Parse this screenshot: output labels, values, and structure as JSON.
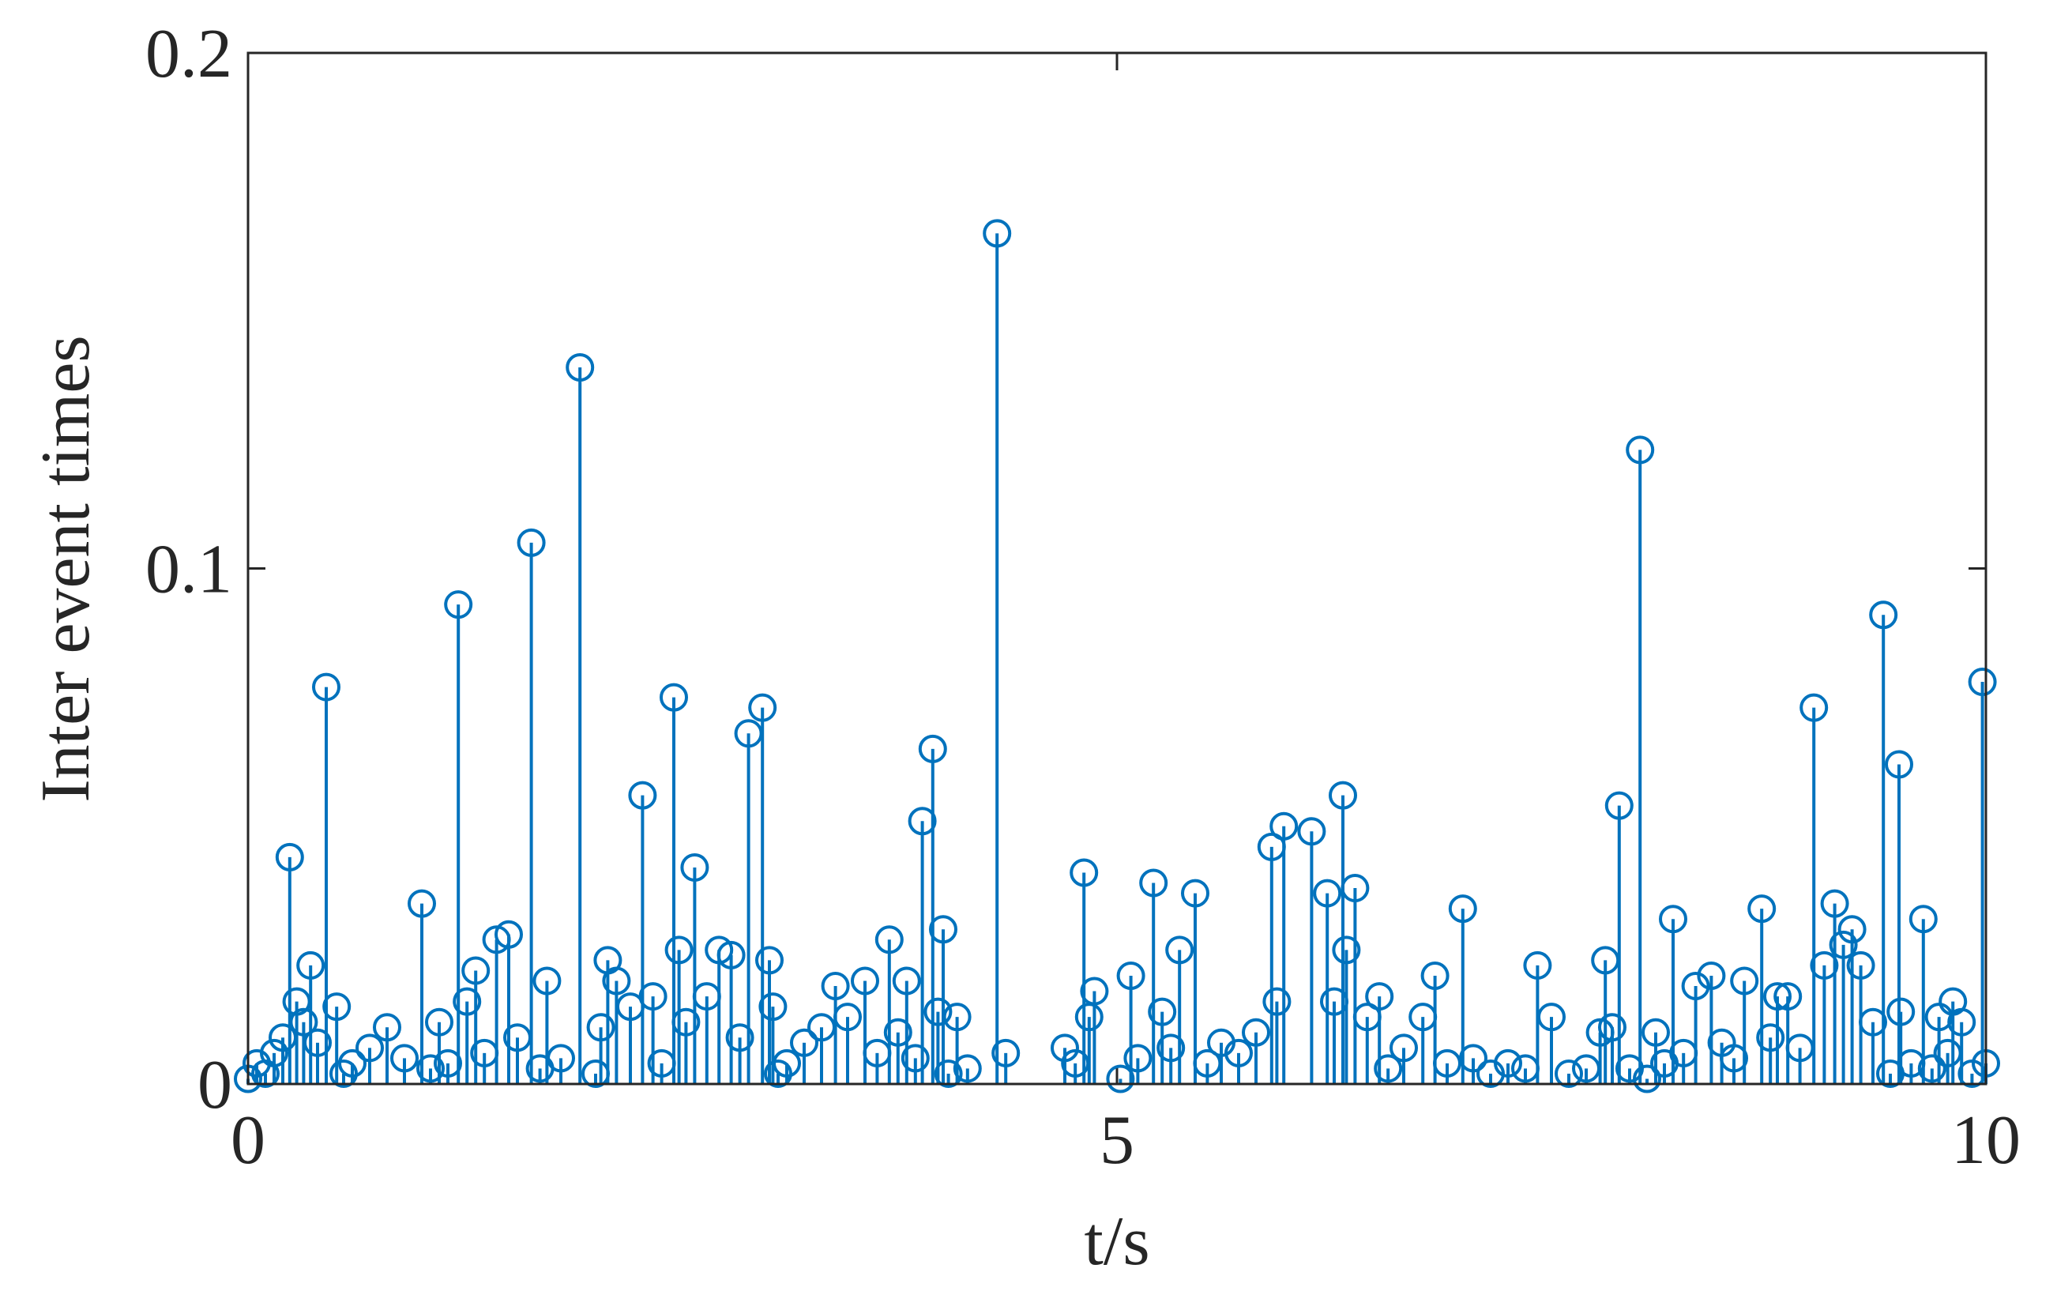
{
  "chart_data": {
    "type": "stem",
    "xlabel": "t/s",
    "ylabel": "Inter event times",
    "color": "#0072BD",
    "xlim": [
      0,
      10
    ],
    "ylim": [
      0,
      0.2
    ],
    "xticks": [
      0,
      5,
      10
    ],
    "yticks": [
      0,
      0.1,
      0.2
    ],
    "box": true,
    "grid": false,
    "x": [
      0.0,
      0.05,
      0.1,
      0.15,
      0.2,
      0.24,
      0.28,
      0.32,
      0.36,
      0.4,
      0.45,
      0.51,
      0.55,
      0.6,
      0.7,
      0.8,
      0.9,
      1.0,
      1.05,
      1.1,
      1.15,
      1.21,
      1.26,
      1.31,
      1.36,
      1.43,
      1.5,
      1.55,
      1.63,
      1.68,
      1.72,
      1.8,
      1.91,
      2.0,
      2.03,
      2.07,
      2.12,
      2.2,
      2.27,
      2.33,
      2.38,
      2.45,
      2.48,
      2.52,
      2.57,
      2.64,
      2.71,
      2.78,
      2.83,
      2.88,
      2.96,
      3.0,
      3.02,
      3.05,
      3.1,
      3.2,
      3.3,
      3.38,
      3.45,
      3.55,
      3.62,
      3.69,
      3.74,
      3.79,
      3.84,
      3.88,
      3.94,
      3.97,
      4.0,
      4.03,
      4.08,
      4.14,
      4.31,
      4.36,
      4.7,
      4.76,
      4.81,
      4.84,
      4.87,
      5.02,
      5.08,
      5.12,
      5.21,
      5.26,
      5.31,
      5.36,
      5.45,
      5.52,
      5.6,
      5.7,
      5.8,
      5.89,
      5.92,
      5.96,
      6.12,
      6.21,
      6.25,
      6.3,
      6.32,
      6.37,
      6.44,
      6.51,
      6.56,
      6.65,
      6.76,
      6.83,
      6.9,
      6.99,
      7.05,
      7.15,
      7.25,
      7.35,
      7.42,
      7.5,
      7.6,
      7.7,
      7.78,
      7.81,
      7.85,
      7.89,
      7.95,
      8.01,
      8.05,
      8.1,
      8.15,
      8.2,
      8.26,
      8.33,
      8.42,
      8.48,
      8.55,
      8.61,
      8.71,
      8.76,
      8.8,
      8.86,
      8.93,
      9.01,
      9.07,
      9.13,
      9.18,
      9.23,
      9.28,
      9.35,
      9.41,
      9.45,
      9.5,
      9.51,
      9.57,
      9.64,
      9.69,
      9.73,
      9.78,
      9.81,
      9.86,
      9.92,
      9.98,
      10.0
    ],
    "values": [
      0.001,
      0.004,
      0.002,
      0.006,
      0.009,
      0.044,
      0.016,
      0.012,
      0.023,
      0.008,
      0.077,
      0.015,
      0.002,
      0.004,
      0.007,
      0.011,
      0.005,
      0.035,
      0.003,
      0.012,
      0.004,
      0.093,
      0.016,
      0.022,
      0.006,
      0.028,
      0.029,
      0.009,
      0.105,
      0.003,
      0.02,
      0.005,
      0.139,
      0.002,
      0.011,
      0.024,
      0.02,
      0.015,
      0.056,
      0.017,
      0.004,
      0.075,
      0.026,
      0.012,
      0.042,
      0.017,
      0.026,
      0.025,
      0.009,
      0.068,
      0.073,
      0.024,
      0.015,
      0.002,
      0.004,
      0.008,
      0.011,
      0.019,
      0.013,
      0.02,
      0.006,
      0.028,
      0.01,
      0.02,
      0.005,
      0.051,
      0.065,
      0.014,
      0.03,
      0.002,
      0.013,
      0.003,
      0.165,
      0.006,
      0.007,
      0.004,
      0.041,
      0.013,
      0.018,
      0.001,
      0.021,
      0.005,
      0.039,
      0.014,
      0.007,
      0.026,
      0.037,
      0.004,
      0.008,
      0.006,
      0.01,
      0.046,
      0.016,
      0.05,
      0.049,
      0.037,
      0.016,
      0.056,
      0.026,
      0.038,
      0.013,
      0.017,
      0.003,
      0.007,
      0.013,
      0.021,
      0.004,
      0.034,
      0.005,
      0.002,
      0.004,
      0.003,
      0.023,
      0.013,
      0.002,
      0.003,
      0.01,
      0.024,
      0.011,
      0.054,
      0.003,
      0.123,
      0.001,
      0.01,
      0.004,
      0.032,
      0.006,
      0.019,
      0.021,
      0.008,
      0.005,
      0.02,
      0.034,
      0.009,
      0.017,
      0.017,
      0.007,
      0.073,
      0.023,
      0.035,
      0.027,
      0.03,
      0.023,
      0.012,
      0.091,
      0.002,
      0.062,
      0.014,
      0.004,
      0.032,
      0.003,
      0.013,
      0.006,
      0.016,
      0.012,
      0.002,
      0.078,
      0.004
    ]
  }
}
